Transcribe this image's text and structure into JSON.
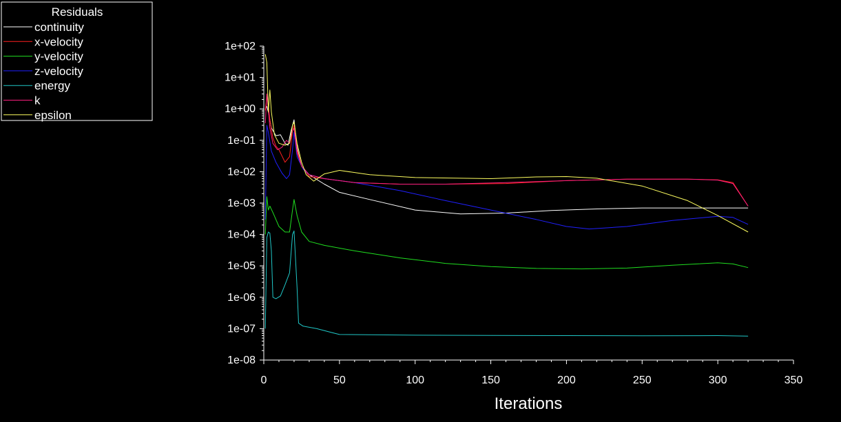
{
  "chart_data": {
    "type": "line",
    "title": "Residuals",
    "xlabel": "Iterations",
    "ylabel": "",
    "yscale": "log",
    "xlim": [
      0,
      350
    ],
    "ylim_exp": [
      -8,
      2
    ],
    "x_ticks": [
      0,
      50,
      100,
      150,
      200,
      250,
      300,
      350
    ],
    "y_tick_labels": [
      "1e-08",
      "1e-07",
      "1e-06",
      "1e-05",
      "1e-04",
      "1e-03",
      "1e-02",
      "1e-01",
      "1e+00",
      "1e+01",
      "1e+02"
    ],
    "series": [
      {
        "name": "continuity",
        "color": "#ffffff",
        "points": [
          [
            1,
            1.0
          ],
          [
            2,
            1.2
          ],
          [
            3,
            0.8
          ],
          [
            5,
            0.25
          ],
          [
            8,
            0.14
          ],
          [
            11,
            0.15
          ],
          [
            14,
            0.08
          ],
          [
            16,
            0.07
          ],
          [
            18,
            0.2
          ],
          [
            20,
            0.45
          ],
          [
            22,
            0.06
          ],
          [
            25,
            0.015
          ],
          [
            30,
            0.008
          ],
          [
            40,
            0.004
          ],
          [
            50,
            0.0022
          ],
          [
            70,
            0.0013
          ],
          [
            100,
            0.0006
          ],
          [
            130,
            0.00045
          ],
          [
            160,
            0.00048
          ],
          [
            190,
            0.00058
          ],
          [
            220,
            0.00065
          ],
          [
            250,
            0.0007
          ],
          [
            280,
            0.0007
          ],
          [
            320,
            0.0007
          ]
        ]
      },
      {
        "name": "x-velocity",
        "color": "#ff2020",
        "points": [
          [
            1,
            0.9
          ],
          [
            2,
            2.6
          ],
          [
            3,
            1.3
          ],
          [
            4,
            0.45
          ],
          [
            6,
            0.12
          ],
          [
            8,
            0.065
          ],
          [
            10,
            0.05
          ],
          [
            14,
            0.02
          ],
          [
            17,
            0.03
          ],
          [
            19,
            0.2
          ],
          [
            20,
            0.3
          ],
          [
            22,
            0.05
          ],
          [
            25,
            0.015
          ],
          [
            30,
            0.007
          ],
          [
            40,
            0.006
          ],
          [
            60,
            0.0045
          ],
          [
            90,
            0.004
          ],
          [
            120,
            0.004
          ],
          [
            160,
            0.0042
          ],
          [
            200,
            0.0052
          ],
          [
            240,
            0.0058
          ],
          [
            280,
            0.0058
          ],
          [
            300,
            0.0055
          ],
          [
            310,
            0.0045
          ],
          [
            320,
            0.0008
          ]
        ]
      },
      {
        "name": "y-velocity",
        "color": "#20e020",
        "points": [
          [
            1,
            0.0001
          ],
          [
            2,
            0.0016
          ],
          [
            3,
            0.0006
          ],
          [
            4,
            0.0008
          ],
          [
            6,
            0.0005
          ],
          [
            8,
            0.0003
          ],
          [
            10,
            0.00018
          ],
          [
            14,
            0.00012
          ],
          [
            17,
            0.00012
          ],
          [
            19,
            0.0006
          ],
          [
            20,
            0.0013
          ],
          [
            22,
            0.0004
          ],
          [
            25,
            0.00012
          ],
          [
            30,
            6e-05
          ],
          [
            40,
            4.5e-05
          ],
          [
            60,
            3e-05
          ],
          [
            90,
            1.8e-05
          ],
          [
            120,
            1.2e-05
          ],
          [
            150,
            9.5e-06
          ],
          [
            180,
            8.3e-06
          ],
          [
            210,
            8e-06
          ],
          [
            240,
            8.5e-06
          ],
          [
            270,
            1.05e-05
          ],
          [
            300,
            1.25e-05
          ],
          [
            310,
            1.15e-05
          ],
          [
            320,
            8.8e-06
          ]
        ]
      },
      {
        "name": "z-velocity",
        "color": "#2020ff",
        "points": [
          [
            1,
            0.0003
          ],
          [
            2,
            0.3
          ],
          [
            3,
            0.18
          ],
          [
            5,
            0.045
          ],
          [
            8,
            0.02
          ],
          [
            12,
            0.009
          ],
          [
            15,
            0.006
          ],
          [
            17,
            0.008
          ],
          [
            19,
            0.05
          ],
          [
            20,
            0.18
          ],
          [
            22,
            0.03
          ],
          [
            26,
            0.012
          ],
          [
            30,
            0.008
          ],
          [
            40,
            0.006
          ],
          [
            60,
            0.0045
          ],
          [
            90,
            0.0025
          ],
          [
            120,
            0.0012
          ],
          [
            150,
            0.0006
          ],
          [
            180,
            0.0003
          ],
          [
            200,
            0.00018
          ],
          [
            215,
            0.00015
          ],
          [
            240,
            0.00018
          ],
          [
            270,
            0.00028
          ],
          [
            300,
            0.00038
          ],
          [
            310,
            0.00035
          ],
          [
            320,
            0.00021
          ]
        ]
      },
      {
        "name": "energy",
        "color": "#20c8c8",
        "points": [
          [
            1,
            1e-07
          ],
          [
            2,
            8e-05
          ],
          [
            3,
            0.00012
          ],
          [
            4,
            0.00011
          ],
          [
            5,
            3e-05
          ],
          [
            6,
            1e-06
          ],
          [
            8,
            9e-07
          ],
          [
            11,
            1.1e-06
          ],
          [
            14,
            2.5e-06
          ],
          [
            17,
            6e-06
          ],
          [
            19,
            0.0001
          ],
          [
            20,
            0.00013
          ],
          [
            22,
            2e-06
          ],
          [
            23,
            1.5e-07
          ],
          [
            26,
            1.2e-07
          ],
          [
            35,
            1e-07
          ],
          [
            45,
            7.5e-08
          ],
          [
            50,
            6.5e-08
          ],
          [
            100,
            6.2e-08
          ],
          [
            150,
            6.1e-08
          ],
          [
            200,
            6e-08
          ],
          [
            250,
            5.9e-08
          ],
          [
            300,
            6e-08
          ],
          [
            320,
            5.8e-08
          ]
        ]
      },
      {
        "name": "k",
        "color": "#ff2080",
        "points": [
          [
            1,
            0.35
          ],
          [
            2,
            3.0
          ],
          [
            3,
            1.0
          ],
          [
            4,
            0.25
          ],
          [
            6,
            0.08
          ],
          [
            9,
            0.05
          ],
          [
            12,
            0.06
          ],
          [
            15,
            0.1
          ],
          [
            17,
            0.08
          ],
          [
            19,
            0.2
          ],
          [
            20,
            0.24
          ],
          [
            22,
            0.04
          ],
          [
            25,
            0.015
          ],
          [
            30,
            0.008
          ],
          [
            40,
            0.006
          ],
          [
            60,
            0.0045
          ],
          [
            90,
            0.004
          ],
          [
            120,
            0.004
          ],
          [
            160,
            0.0045
          ],
          [
            200,
            0.0052
          ],
          [
            240,
            0.0058
          ],
          [
            280,
            0.0058
          ],
          [
            300,
            0.0054
          ],
          [
            310,
            0.0042
          ],
          [
            320,
            0.0008
          ]
        ]
      },
      {
        "name": "epsilon",
        "color": "#ffff60",
        "points": [
          [
            1,
            55
          ],
          [
            2,
            30
          ],
          [
            3,
            0.8
          ],
          [
            4,
            4.0
          ],
          [
            5,
            0.8
          ],
          [
            7,
            0.15
          ],
          [
            10,
            0.08
          ],
          [
            14,
            0.07
          ],
          [
            17,
            0.08
          ],
          [
            19,
            0.3
          ],
          [
            20,
            0.38
          ],
          [
            22,
            0.08
          ],
          [
            25,
            0.02
          ],
          [
            28,
            0.008
          ],
          [
            33,
            0.005
          ],
          [
            40,
            0.0085
          ],
          [
            50,
            0.011
          ],
          [
            70,
            0.008
          ],
          [
            100,
            0.0065
          ],
          [
            150,
            0.006
          ],
          [
            180,
            0.0068
          ],
          [
            200,
            0.007
          ],
          [
            220,
            0.0062
          ],
          [
            250,
            0.0035
          ],
          [
            280,
            0.0012
          ],
          [
            300,
            0.0004
          ],
          [
            320,
            0.00012
          ]
        ]
      }
    ]
  }
}
